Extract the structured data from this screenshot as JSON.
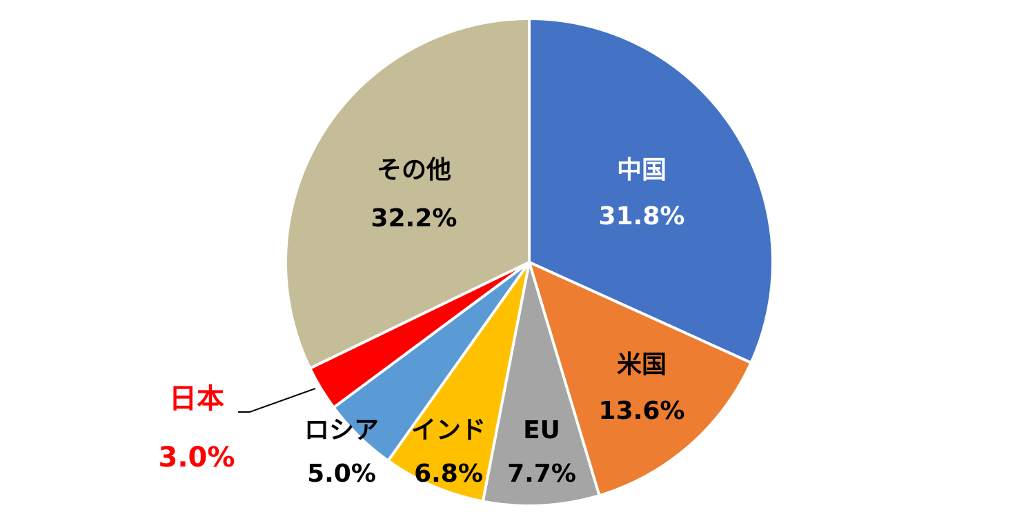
{
  "chart_data": {
    "type": "pie",
    "categories": [
      "中国",
      "米国",
      "EU",
      "インド",
      "ロシア",
      "日本",
      "その他"
    ],
    "values": [
      31.8,
      13.6,
      7.7,
      6.8,
      5.0,
      3.0,
      32.2
    ],
    "value_labels": [
      "31.8%",
      "13.6%",
      "7.7%",
      "6.8%",
      "5.0%",
      "3.0%",
      "32.2%"
    ],
    "colors": [
      "#4472c4",
      "#ed7d31",
      "#a5a5a5",
      "#ffc000",
      "#5b9bd5",
      "#ff0000",
      "#c4bd97"
    ],
    "label_colors": [
      "#ffffff",
      "#000000",
      "#000000",
      "#000000",
      "#000000",
      "#ff0000",
      "#000000"
    ]
  }
}
